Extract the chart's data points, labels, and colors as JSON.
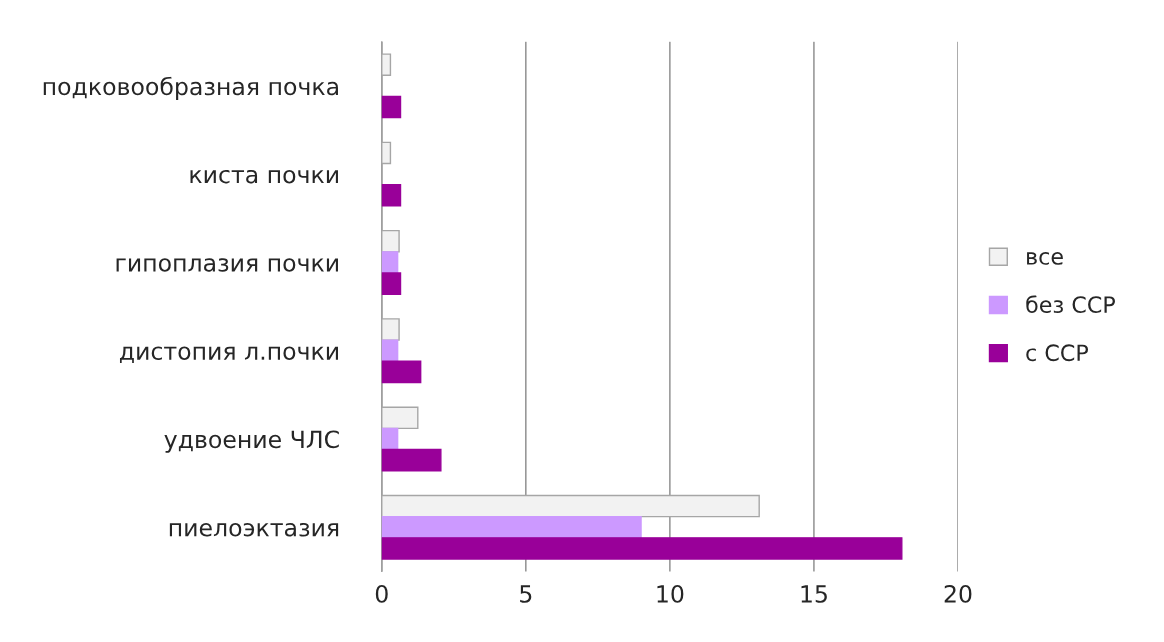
{
  "chart_data": {
    "type": "bar",
    "orientation": "horizontal",
    "categories": [
      "подковообразная почка",
      "киста почки",
      "гипоплазия почки",
      "дистопия л.почки",
      "удвоение ЧЛС",
      "пиелоэктазия"
    ],
    "series": [
      {
        "name": "все",
        "color": "#f2f2f2",
        "values": [
          0.3,
          0.3,
          0.6,
          0.6,
          1.25,
          13.1
        ]
      },
      {
        "name": "без ССР",
        "color": "#cc99ff",
        "values": [
          null,
          null,
          0.55,
          0.55,
          0.55,
          9.0
        ]
      },
      {
        "name": "с ССР",
        "color": "#990099",
        "values": [
          0.65,
          0.65,
          0.65,
          1.35,
          2.05,
          18.05
        ]
      }
    ],
    "xlim": [
      0,
      20
    ],
    "xticks": [
      0,
      5,
      10,
      15,
      20
    ],
    "grid": "x",
    "legend": "right"
  }
}
